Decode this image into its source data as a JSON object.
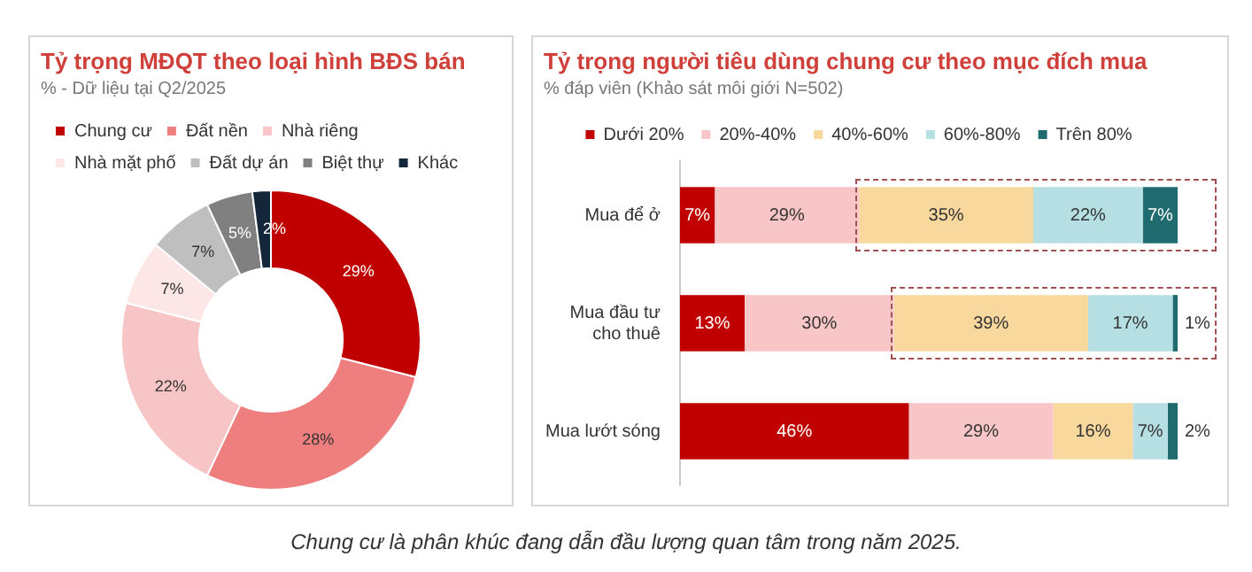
{
  "chart_data": [
    {
      "type": "donut",
      "title": "Tỷ trọng MĐQT theo loại hình BĐS bán",
      "subtitle": "% - Dữ liệu tại Q2/2025",
      "categories": [
        "Chung cư",
        "Đất nền",
        "Nhà riêng",
        "Nhà mặt phố",
        "Đất dự án",
        "Biệt thự",
        "Khác"
      ],
      "values": [
        29,
        28,
        22,
        7,
        7,
        5,
        2
      ],
      "value_labels": [
        "29%",
        "28%",
        "22%",
        "7%",
        "7%",
        "5%",
        "2%"
      ],
      "colors": [
        "#c00000",
        "#ef7f7f",
        "#f7c5c5",
        "#fce6e6",
        "#bfbfbf",
        "#808080",
        "#14263a"
      ],
      "legend": "top",
      "annotations": [
        "Chung cư là phân khúc đang dẫn đầu lượng quan tâm trong năm 2025."
      ]
    },
    {
      "type": "bar",
      "orientation": "horizontal",
      "stacked": true,
      "title": "Tỷ trọng người tiêu dùng chung cư theo mục đích mua",
      "subtitle": "% đáp viên (Khảo sát môi giới N=502)",
      "categories": [
        "Mua để ở",
        "Mua đầu tư cho thuê",
        "Mua lướt sóng"
      ],
      "series": [
        {
          "name": "Dưới 20%",
          "color": "#c00000",
          "values": [
            7,
            13,
            46
          ],
          "value_labels": [
            "7%",
            "13%",
            "46%"
          ]
        },
        {
          "name": "20%-40%",
          "color": "#f8c6c6",
          "values": [
            29,
            30,
            29
          ],
          "value_labels": [
            "29%",
            "30%",
            "29%"
          ]
        },
        {
          "name": "40%-60%",
          "color": "#f9d89e",
          "values": [
            35,
            39,
            16
          ],
          "value_labels": [
            "35%",
            "39%",
            "16%"
          ]
        },
        {
          "name": "60%-80%",
          "color": "#b6dfe3",
          "values": [
            22,
            17,
            7
          ],
          "value_labels": [
            "22%",
            "17%",
            "7%"
          ]
        },
        {
          "name": "Trên 80%",
          "color": "#1f6b70",
          "values": [
            7,
            1,
            2
          ],
          "value_labels": [
            "7%",
            "1%",
            "2%"
          ]
        }
      ],
      "legend": "top",
      "grid": false
    }
  ]
}
